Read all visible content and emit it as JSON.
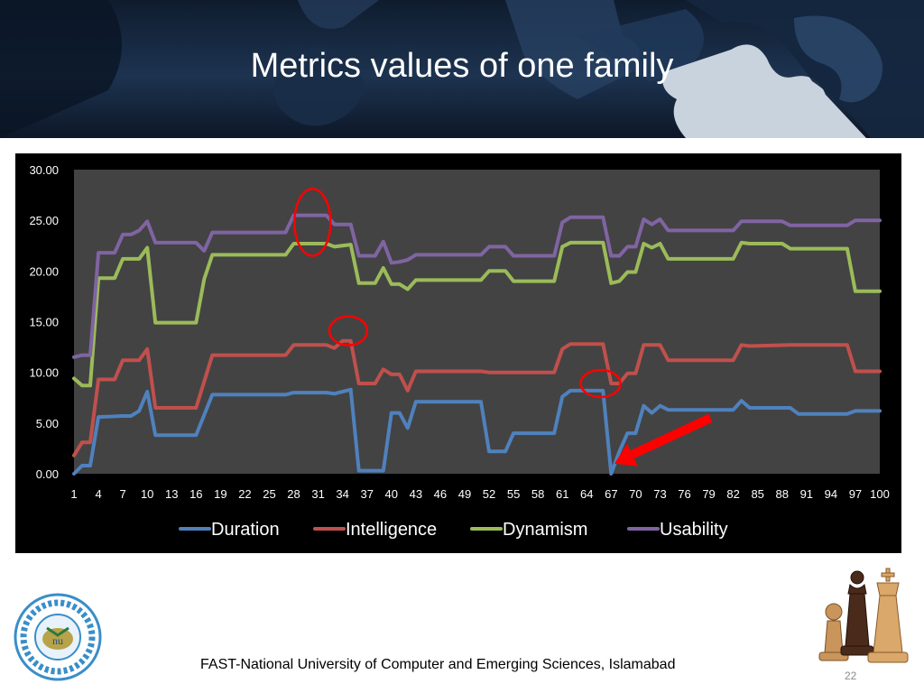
{
  "slide": {
    "title": "Metrics values of one family",
    "footer": "FAST-National University of Computer and Emerging Sciences, Islamabad",
    "page_number": "22"
  },
  "icons": [
    "puzzle-pieces-image",
    "university-logo-icon",
    "chess-pieces-image",
    "red-arrow-icon"
  ],
  "chart_data": {
    "type": "line",
    "title": "",
    "xlabel": "",
    "ylabel": "",
    "ylim": [
      0,
      30
    ],
    "xlim": [
      1,
      100
    ],
    "grid": false,
    "background": "#434343",
    "legend_position": "bottom",
    "y_ticks": [
      "0.00",
      "5.00",
      "10.00",
      "15.00",
      "20.00",
      "25.00",
      "30.00"
    ],
    "x_ticks": [
      "1",
      "4",
      "7",
      "10",
      "13",
      "16",
      "19",
      "22",
      "25",
      "28",
      "31",
      "34",
      "37",
      "40",
      "43",
      "46",
      "49",
      "52",
      "55",
      "58",
      "61",
      "64",
      "67",
      "70",
      "73",
      "76",
      "79",
      "82",
      "85",
      "88",
      "91",
      "94",
      "97",
      "100"
    ],
    "series": [
      {
        "name": "Duration",
        "color": "#4f81bd",
        "points": [
          [
            1,
            0.0
          ],
          [
            2,
            0.8
          ],
          [
            3,
            0.8
          ],
          [
            4,
            5.6
          ],
          [
            7,
            5.7
          ],
          [
            8,
            5.7
          ],
          [
            9,
            6.2
          ],
          [
            10,
            8.1
          ],
          [
            11,
            3.8
          ],
          [
            16,
            3.8
          ],
          [
            18,
            7.8
          ],
          [
            27,
            7.8
          ],
          [
            28,
            8.0
          ],
          [
            32,
            8.0
          ],
          [
            33,
            7.9
          ],
          [
            35,
            8.3
          ],
          [
            36,
            0.3
          ],
          [
            39,
            0.3
          ],
          [
            40,
            6.0
          ],
          [
            41,
            6.0
          ],
          [
            42,
            4.5
          ],
          [
            43,
            7.1
          ],
          [
            51,
            7.1
          ],
          [
            52,
            2.2
          ],
          [
            54,
            2.2
          ],
          [
            55,
            4.0
          ],
          [
            60,
            4.0
          ],
          [
            61,
            7.6
          ],
          [
            62,
            8.2
          ],
          [
            66,
            8.2
          ],
          [
            67,
            0.0
          ],
          [
            68,
            2.2
          ],
          [
            69,
            4.0
          ],
          [
            70,
            4.0
          ],
          [
            71,
            6.7
          ],
          [
            72,
            6.0
          ],
          [
            73,
            6.7
          ],
          [
            74,
            6.3
          ],
          [
            82,
            6.3
          ],
          [
            83,
            7.2
          ],
          [
            84,
            6.5
          ],
          [
            89,
            6.5
          ],
          [
            90,
            5.9
          ],
          [
            96,
            5.9
          ],
          [
            97,
            6.2
          ],
          [
            100,
            6.2
          ]
        ]
      },
      {
        "name": "Intelligence",
        "color": "#c0504d",
        "points": [
          [
            1,
            1.8
          ],
          [
            2,
            3.1
          ],
          [
            3,
            3.1
          ],
          [
            4,
            9.3
          ],
          [
            6,
            9.3
          ],
          [
            7,
            11.2
          ],
          [
            9,
            11.2
          ],
          [
            10,
            12.3
          ],
          [
            11,
            6.5
          ],
          [
            16,
            6.5
          ],
          [
            18,
            11.7
          ],
          [
            27,
            11.7
          ],
          [
            28,
            12.7
          ],
          [
            32,
            12.7
          ],
          [
            33,
            12.4
          ],
          [
            34,
            13.1
          ],
          [
            35,
            13.1
          ],
          [
            36,
            8.9
          ],
          [
            38,
            8.9
          ],
          [
            39,
            10.3
          ],
          [
            40,
            9.8
          ],
          [
            41,
            9.8
          ],
          [
            42,
            8.2
          ],
          [
            43,
            10.1
          ],
          [
            51,
            10.1
          ],
          [
            52,
            10.0
          ],
          [
            60,
            10.0
          ],
          [
            61,
            12.3
          ],
          [
            62,
            12.8
          ],
          [
            66,
            12.8
          ],
          [
            67,
            8.9
          ],
          [
            68,
            8.9
          ],
          [
            69,
            9.9
          ],
          [
            70,
            9.9
          ],
          [
            71,
            12.7
          ],
          [
            73,
            12.7
          ],
          [
            74,
            11.2
          ],
          [
            82,
            11.2
          ],
          [
            83,
            12.7
          ],
          [
            84,
            12.6
          ],
          [
            89,
            12.7
          ],
          [
            96,
            12.7
          ],
          [
            97,
            10.1
          ],
          [
            100,
            10.1
          ]
        ]
      },
      {
        "name": "Dynamism",
        "color": "#9bbb59",
        "points": [
          [
            1,
            9.4
          ],
          [
            2,
            8.7
          ],
          [
            3,
            8.7
          ],
          [
            4,
            19.3
          ],
          [
            6,
            19.3
          ],
          [
            7,
            21.2
          ],
          [
            9,
            21.2
          ],
          [
            10,
            22.3
          ],
          [
            11,
            14.9
          ],
          [
            16,
            14.9
          ],
          [
            17,
            19.2
          ],
          [
            18,
            21.6
          ],
          [
            27,
            21.6
          ],
          [
            28,
            22.7
          ],
          [
            32,
            22.7
          ],
          [
            33,
            22.4
          ],
          [
            35,
            22.6
          ],
          [
            36,
            18.8
          ],
          [
            38,
            18.8
          ],
          [
            39,
            20.3
          ],
          [
            40,
            18.7
          ],
          [
            41,
            18.7
          ],
          [
            42,
            18.2
          ],
          [
            43,
            19.1
          ],
          [
            51,
            19.1
          ],
          [
            52,
            20.0
          ],
          [
            54,
            20.0
          ],
          [
            55,
            19.0
          ],
          [
            60,
            19.0
          ],
          [
            61,
            22.4
          ],
          [
            62,
            22.8
          ],
          [
            66,
            22.8
          ],
          [
            67,
            18.8
          ],
          [
            68,
            19.0
          ],
          [
            69,
            19.9
          ],
          [
            70,
            19.9
          ],
          [
            71,
            22.7
          ],
          [
            72,
            22.3
          ],
          [
            73,
            22.7
          ],
          [
            74,
            21.2
          ],
          [
            82,
            21.2
          ],
          [
            83,
            22.8
          ],
          [
            84,
            22.7
          ],
          [
            88,
            22.7
          ],
          [
            89,
            22.2
          ],
          [
            96,
            22.2
          ],
          [
            97,
            18.0
          ],
          [
            100,
            18.0
          ]
        ]
      },
      {
        "name": "Usability",
        "color": "#8064a2",
        "points": [
          [
            1,
            11.5
          ],
          [
            2,
            11.7
          ],
          [
            3,
            11.7
          ],
          [
            4,
            21.8
          ],
          [
            6,
            21.8
          ],
          [
            7,
            23.6
          ],
          [
            8,
            23.6
          ],
          [
            9,
            24.0
          ],
          [
            10,
            24.9
          ],
          [
            11,
            22.8
          ],
          [
            16,
            22.8
          ],
          [
            17,
            22.0
          ],
          [
            18,
            23.8
          ],
          [
            27,
            23.8
          ],
          [
            28,
            25.5
          ],
          [
            32,
            25.5
          ],
          [
            33,
            24.6
          ],
          [
            35,
            24.6
          ],
          [
            36,
            21.5
          ],
          [
            38,
            21.5
          ],
          [
            39,
            22.9
          ],
          [
            40,
            20.8
          ],
          [
            41,
            20.9
          ],
          [
            42,
            21.1
          ],
          [
            43,
            21.6
          ],
          [
            51,
            21.6
          ],
          [
            52,
            22.4
          ],
          [
            54,
            22.4
          ],
          [
            55,
            21.5
          ],
          [
            60,
            21.5
          ],
          [
            61,
            24.8
          ],
          [
            62,
            25.3
          ],
          [
            66,
            25.3
          ],
          [
            67,
            21.5
          ],
          [
            68,
            21.5
          ],
          [
            69,
            22.4
          ],
          [
            70,
            22.4
          ],
          [
            71,
            25.1
          ],
          [
            72,
            24.6
          ],
          [
            73,
            25.1
          ],
          [
            74,
            24.0
          ],
          [
            82,
            24.0
          ],
          [
            83,
            24.9
          ],
          [
            88,
            24.9
          ],
          [
            89,
            24.5
          ],
          [
            96,
            24.5
          ],
          [
            97,
            25.0
          ],
          [
            100,
            25.0
          ]
        ]
      }
    ],
    "annotations": [
      {
        "shape": "ellipse",
        "color": "#ff0000",
        "around": "Usability and Dynamism peak near x=29-31"
      },
      {
        "shape": "ellipse",
        "color": "#ff0000",
        "around": "Intelligence peak near x=34"
      },
      {
        "shape": "ellipse",
        "color": "#ff0000",
        "around": "Duration drop near x=66"
      },
      {
        "shape": "arrow",
        "color": "#ff0000",
        "points_to": "Duration minimum near x=67"
      }
    ]
  }
}
